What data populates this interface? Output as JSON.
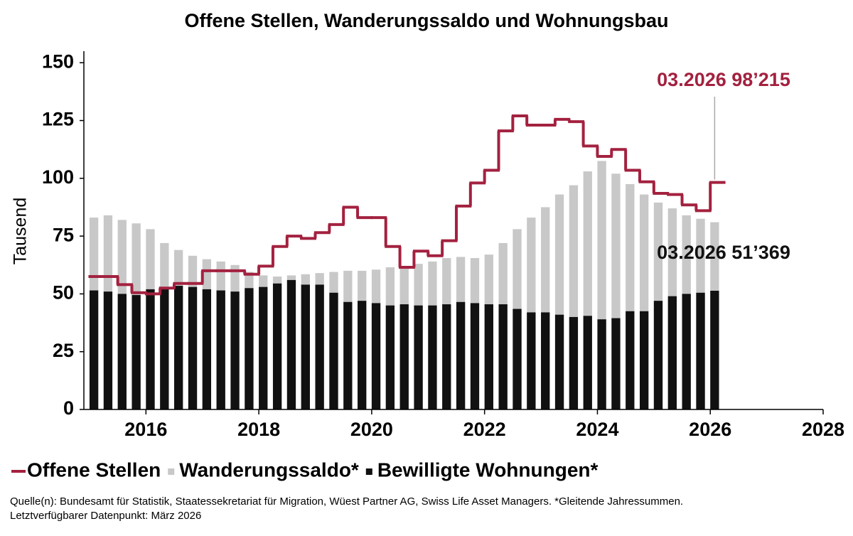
{
  "chart_data": {
    "type": "bar-line",
    "title": "Offene Stellen, Wanderungssaldo und Wohnungsbau",
    "y_label": "Tausend",
    "xlim": [
      2014.9,
      2028
    ],
    "xticks": [
      2016,
      2018,
      2020,
      2022,
      2024,
      2026,
      2028
    ],
    "ylim": [
      0,
      155
    ],
    "yticks": [
      0,
      25,
      50,
      75,
      100,
      125,
      150
    ],
    "grid": false,
    "x": [
      2015,
      2015.25,
      2015.5,
      2015.75,
      2016,
      2016.25,
      2016.5,
      2016.75,
      2017,
      2017.25,
      2017.5,
      2017.75,
      2018,
      2018.25,
      2018.5,
      2018.75,
      2019,
      2019.25,
      2019.5,
      2019.75,
      2020,
      2020.25,
      2020.5,
      2020.75,
      2021,
      2021.25,
      2021.5,
      2021.75,
      2022,
      2022.25,
      2022.5,
      2022.75,
      2023,
      2023.25,
      2023.5,
      2023.75,
      2024,
      2024.25,
      2024.5,
      2024.75,
      2025,
      2025.25,
      2025.5,
      2025.75,
      2026
    ],
    "series": [
      {
        "name": "Wanderungssaldo*",
        "kind": "bar",
        "color": "#c8c8c8",
        "values": [
          83,
          84,
          82,
          80.5,
          78,
          72,
          69,
          66.5,
          65,
          64,
          62.5,
          59.5,
          58,
          57.5,
          58,
          58.5,
          59,
          59.5,
          60,
          60,
          60.5,
          61.5,
          62,
          63,
          64,
          65.5,
          66,
          65.5,
          67,
          72,
          78,
          83,
          87.5,
          93,
          97,
          103,
          107.5,
          102,
          97.5,
          93,
          89.5,
          87,
          84,
          82.5,
          81
        ]
      },
      {
        "name": "Bewilligte Wohnungen*",
        "kind": "bar",
        "color": "#111111",
        "values": [
          51.5,
          51,
          50,
          49.5,
          52,
          52.5,
          53.5,
          53,
          52,
          51.5,
          51,
          52.5,
          53,
          54.5,
          56,
          54,
          54,
          50.5,
          46.5,
          47,
          46,
          45,
          45.5,
          45,
          45,
          45.5,
          46.5,
          46,
          45.5,
          45.5,
          43.5,
          42,
          42,
          41,
          40,
          40.5,
          39,
          39.5,
          42.5,
          42.5,
          47,
          49,
          50,
          50.5,
          51.369
        ]
      },
      {
        "name": "Offene Stellen",
        "kind": "step",
        "color": "#a3213f",
        "values": [
          57.5,
          57.5,
          54,
          50.5,
          50,
          52.5,
          54.5,
          54.5,
          60,
          60,
          60,
          58.5,
          62,
          70.5,
          75,
          74,
          76.5,
          80,
          87.5,
          83,
          83,
          70.5,
          61.5,
          68.5,
          66.5,
          73,
          88,
          98,
          103.5,
          120.5,
          127,
          123,
          123,
          125.5,
          124.5,
          114,
          109.5,
          112.5,
          103.5,
          98.5,
          93.5,
          93,
          88.5,
          86,
          98.215
        ]
      }
    ],
    "annotations": [
      {
        "text": "03.2026 98’215",
        "color": "#a3213f"
      },
      {
        "text": "03.2026 51’369",
        "color": "#111111"
      }
    ],
    "source": "Quelle(n): Bundesamt für Statistik, Staatessekretariat für Migration, Wüest Partner AG, Swiss Life Asset Managers. *Gleitende Jahressummen.",
    "note": "Letztverfügbarer Datenpunkt: März 2026"
  }
}
